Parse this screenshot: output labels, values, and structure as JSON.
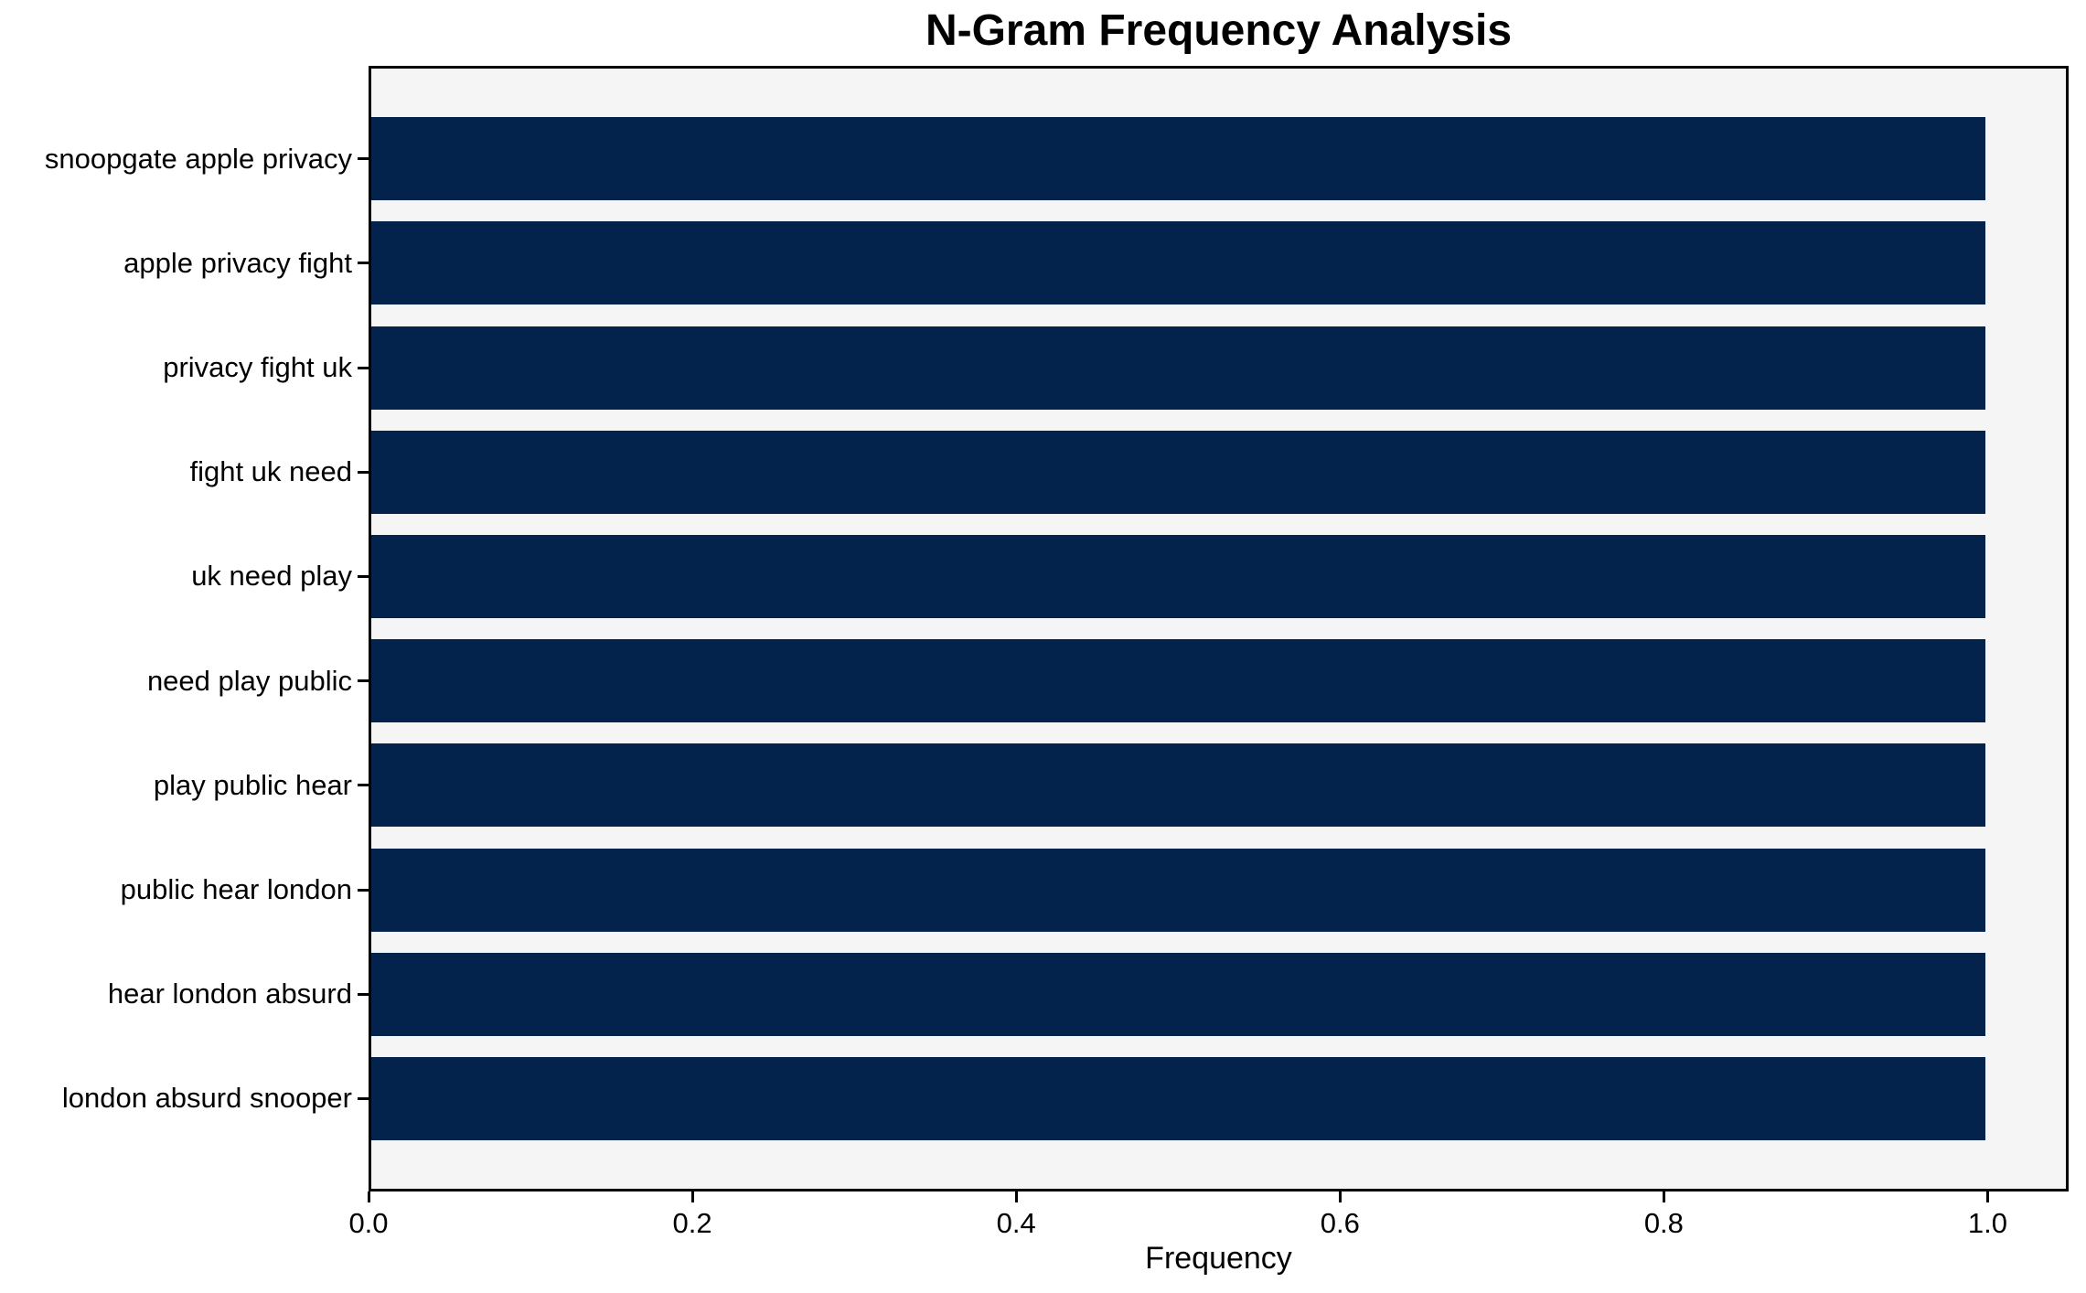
{
  "chart_data": {
    "type": "bar",
    "orientation": "horizontal",
    "title": "N-Gram Frequency Analysis",
    "xlabel": "Frequency",
    "ylabel": "",
    "categories": [
      "snoopgate apple privacy",
      "apple privacy fight",
      "privacy fight uk",
      "fight uk need",
      "uk need play",
      "need play public",
      "play public hear",
      "public hear london",
      "hear london absurd",
      "london absurd snooper"
    ],
    "values": [
      1.0,
      1.0,
      1.0,
      1.0,
      1.0,
      1.0,
      1.0,
      1.0,
      1.0,
      1.0
    ],
    "xlim": [
      0,
      1.05
    ],
    "xticks": [
      0.0,
      0.2,
      0.4,
      0.6,
      0.8,
      1.0
    ],
    "xtick_labels": [
      "0.0",
      "0.2",
      "0.4",
      "0.6",
      "0.8",
      "1.0"
    ],
    "grid": false,
    "legend": null,
    "colors": {
      "bar": "#03234d",
      "plot_background": "#f5f5f5",
      "figure_background": "#ffffff",
      "spine": "#000000",
      "text": "#000000"
    }
  }
}
